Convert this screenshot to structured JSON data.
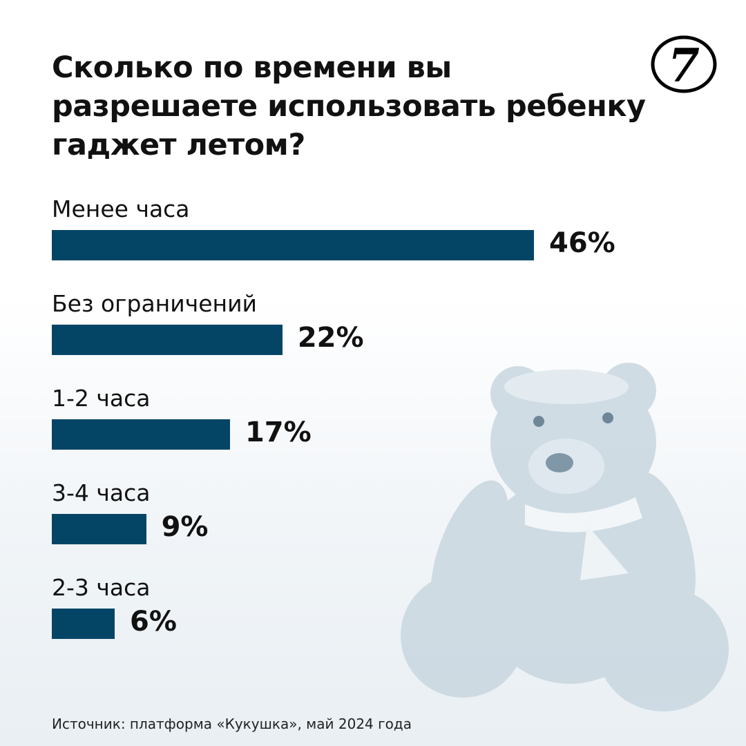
{
  "chart_data": {
    "type": "bar",
    "orientation": "horizontal",
    "title": "Сколько по времени вы разрешаете использовать ребенку гаджет летом?",
    "categories": [
      "Менее часа",
      "Без ограничений",
      "1-2 часа",
      "3-4 часа",
      "2-3 часа"
    ],
    "values": [
      46,
      22,
      17,
      9,
      6
    ],
    "value_labels": [
      "46%",
      "22%",
      "17%",
      "9%",
      "6%"
    ],
    "color": "#044566",
    "xlabel": "",
    "ylabel": ""
  },
  "source": "Источник: платформа «Кукушка», май 2024 года",
  "logo_text": "7"
}
